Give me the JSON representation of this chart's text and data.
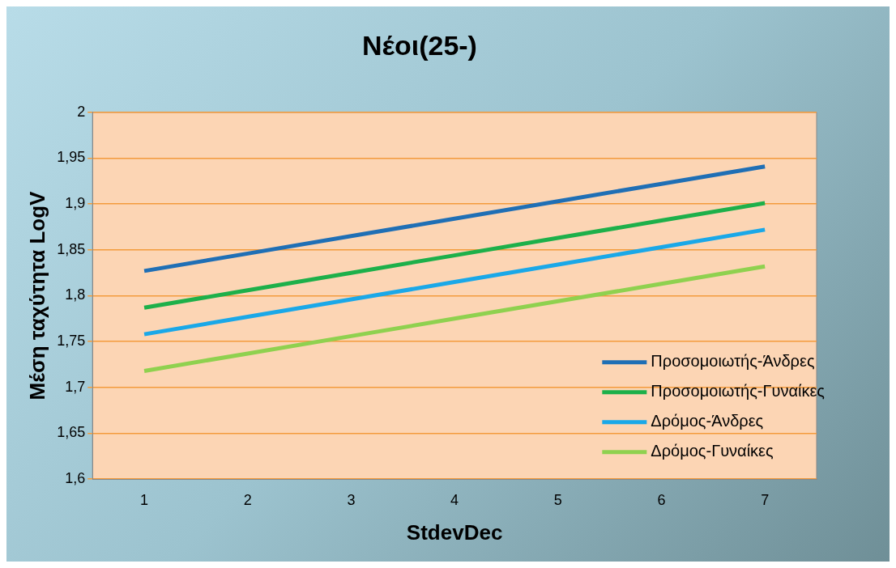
{
  "chart_data": {
    "type": "line",
    "title": "Νέοι(25-)",
    "xlabel": "StdevDec",
    "ylabel": "Μέση ταχύτητα LogV",
    "categories": [
      "1",
      "2",
      "3",
      "4",
      "5",
      "6",
      "7"
    ],
    "series": [
      {
        "name": "Προσομοιωτής-Άνδρες",
        "color": "#1f6fb5",
        "values": [
          1.827,
          1.846,
          1.865,
          1.884,
          1.903,
          1.922,
          1.941
        ]
      },
      {
        "name": "Προσομοιωτής-Γυναίκες",
        "color": "#1db04a",
        "values": [
          1.787,
          1.806,
          1.825,
          1.844,
          1.863,
          1.882,
          1.901
        ]
      },
      {
        "name": "Δρόμος-Άνδρες",
        "color": "#1aa8e8",
        "values": [
          1.758,
          1.777,
          1.796,
          1.815,
          1.834,
          1.853,
          1.872
        ]
      },
      {
        "name": "Δρόμος-Γυναίκες",
        "color": "#8fd14f",
        "values": [
          1.718,
          1.737,
          1.756,
          1.775,
          1.794,
          1.813,
          1.832
        ]
      }
    ],
    "ylim": [
      1.6,
      2
    ],
    "yticks": [
      {
        "value": 1.6,
        "label": "1,6"
      },
      {
        "value": 1.65,
        "label": "1,65"
      },
      {
        "value": 1.7,
        "label": "1,7"
      },
      {
        "value": 1.75,
        "label": "1,75"
      },
      {
        "value": 1.8,
        "label": "1,8"
      },
      {
        "value": 1.85,
        "label": "1,85"
      },
      {
        "value": 1.9,
        "label": "1,9"
      },
      {
        "value": 1.95,
        "label": "1,95"
      },
      {
        "value": 2,
        "label": "2"
      }
    ],
    "grid": "y",
    "legend": "bottom right",
    "marker": "none",
    "line_style": "solid"
  }
}
